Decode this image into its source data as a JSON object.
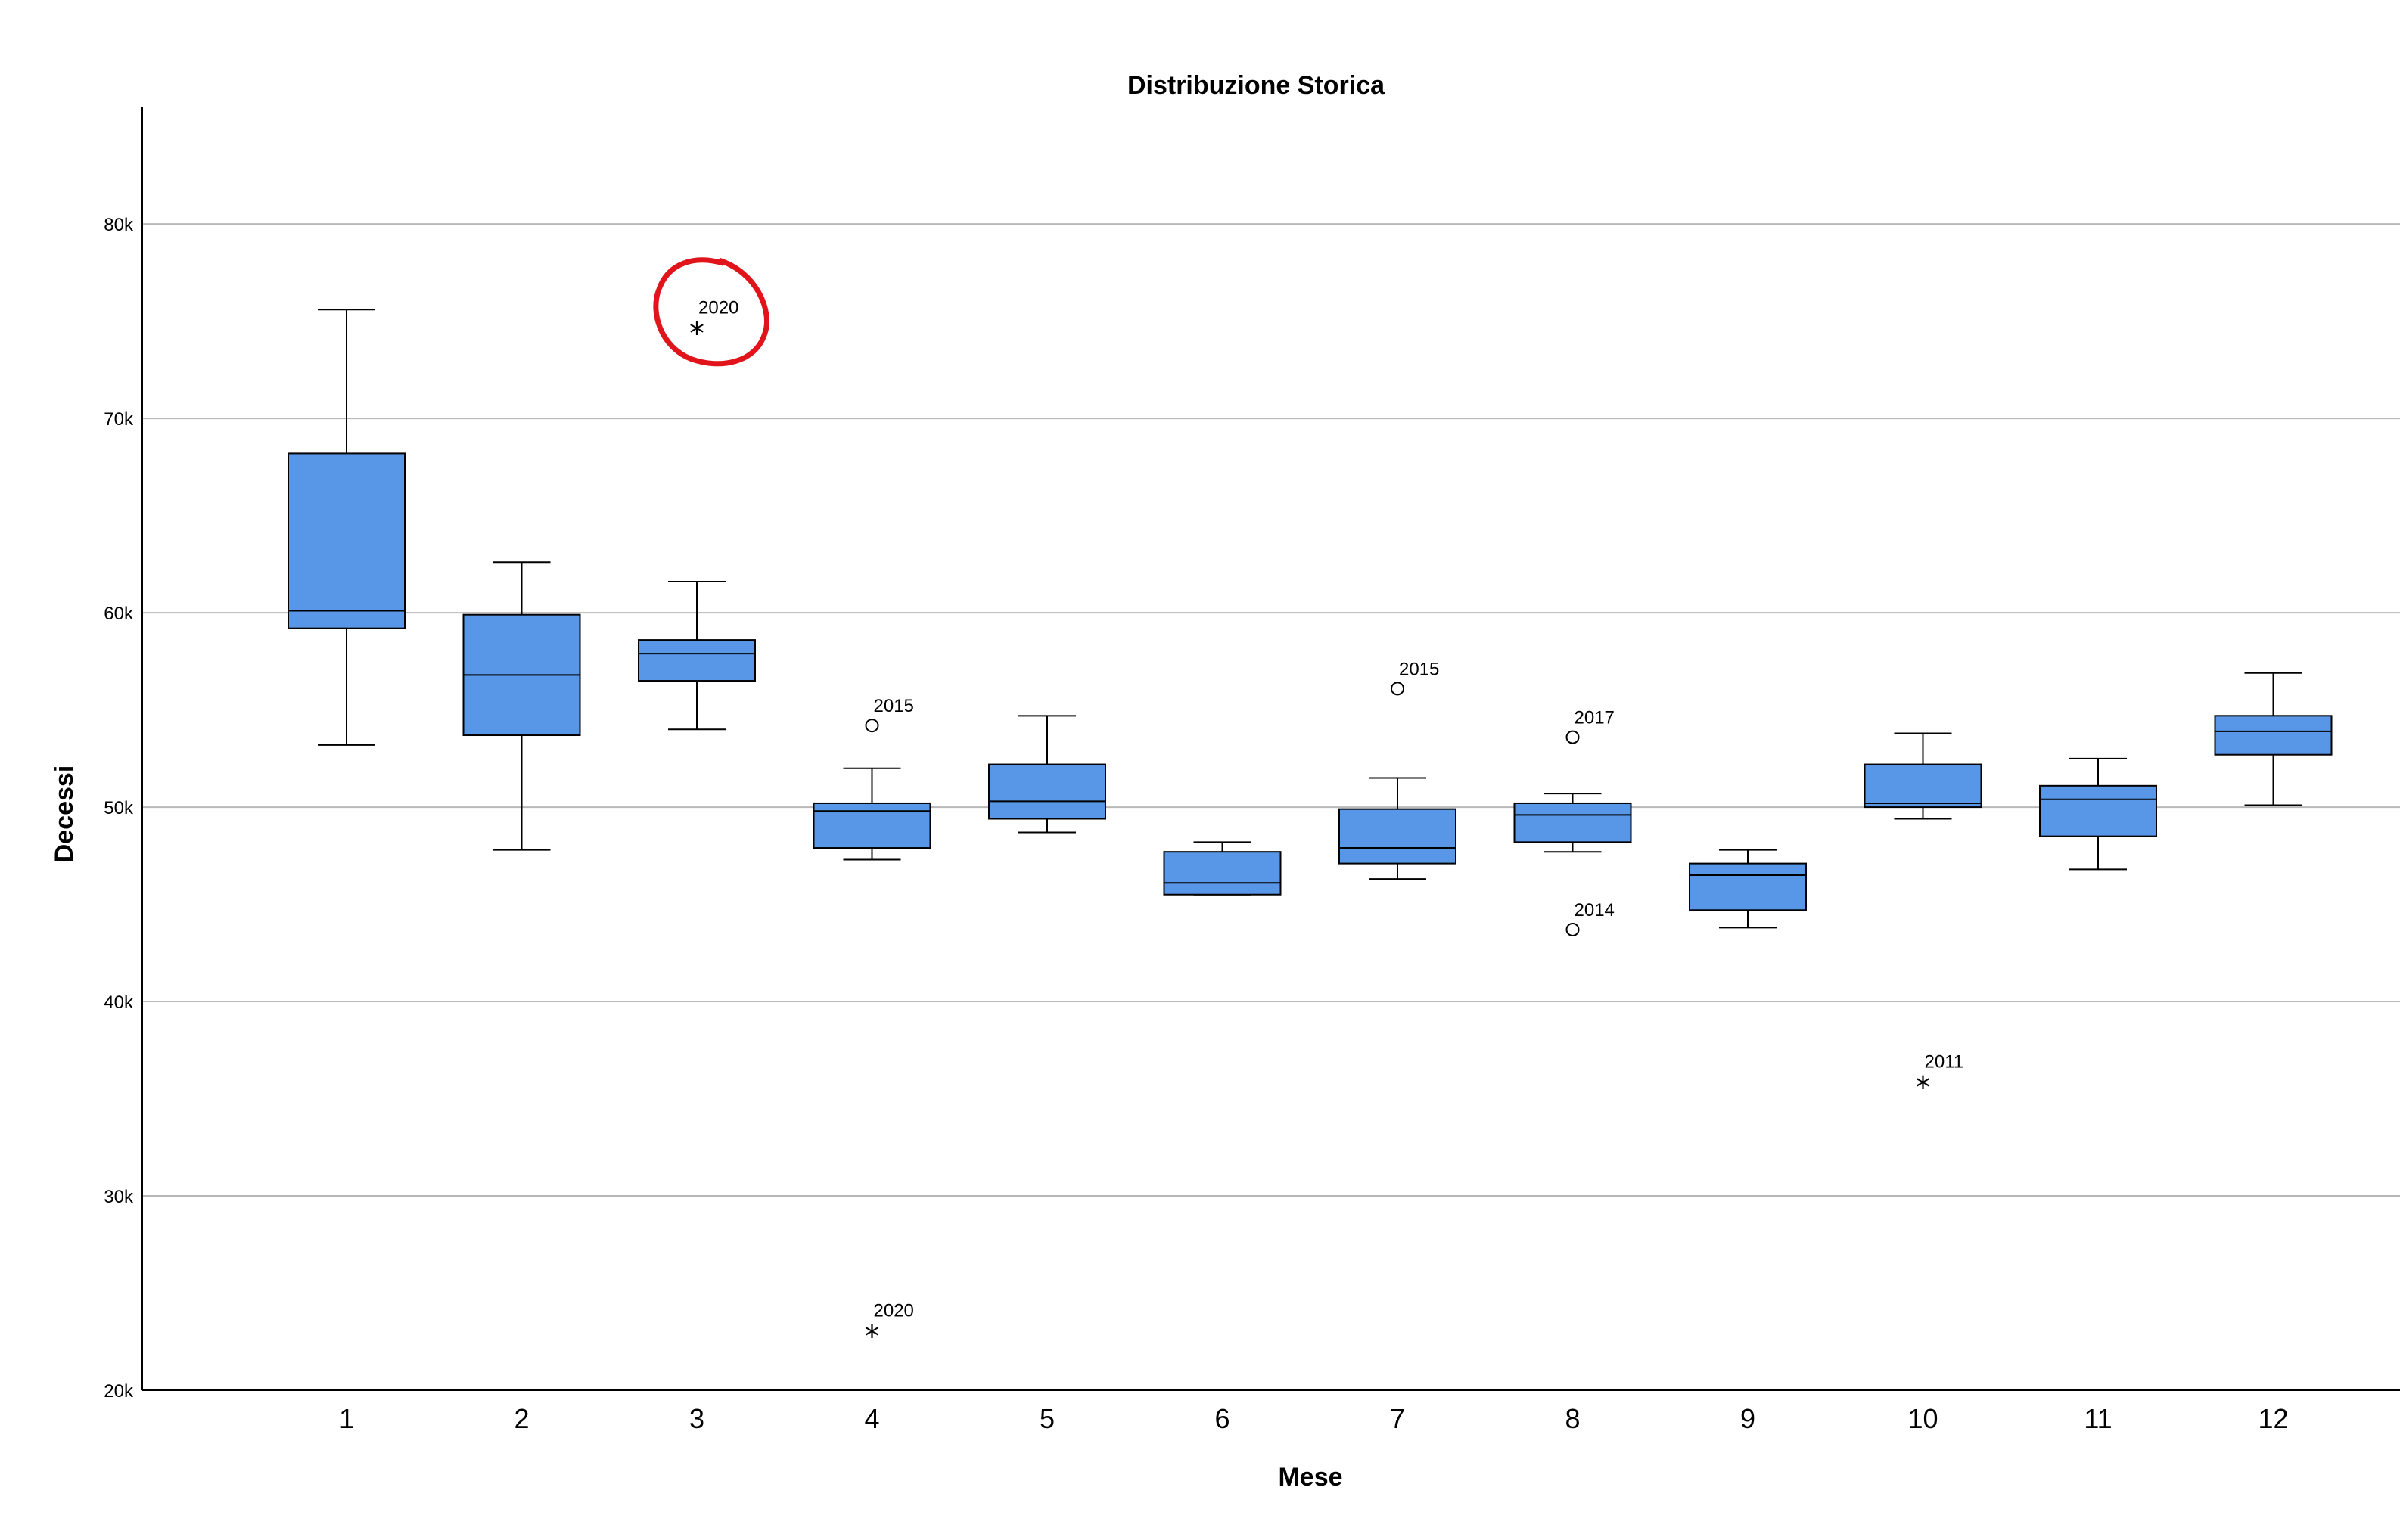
{
  "chart_data": {
    "type": "boxplot",
    "title": "Distribuzione Storica",
    "xlabel": "Mese",
    "ylabel": "Decessi",
    "ylim": [
      20000,
      86000
    ],
    "yticks": [
      {
        "value": 20000,
        "label": "20k"
      },
      {
        "value": 30000,
        "label": "30k"
      },
      {
        "value": 40000,
        "label": "40k"
      },
      {
        "value": 50000,
        "label": "50k"
      },
      {
        "value": 60000,
        "label": "60k"
      },
      {
        "value": 70000,
        "label": "70k"
      },
      {
        "value": 80000,
        "label": "80k"
      }
    ],
    "grid": true,
    "box_color": "#5897e8",
    "highlight_color": "#e0141a",
    "categories": [
      "1",
      "2",
      "3",
      "4",
      "5",
      "6",
      "7",
      "8",
      "9",
      "10",
      "11",
      "12"
    ],
    "boxes": [
      {
        "category": "1",
        "whisker_low": 53200,
        "q1": 59200,
        "median": 60100,
        "q3": 68200,
        "whisker_high": 75600
      },
      {
        "category": "2",
        "whisker_low": 47800,
        "q1": 53700,
        "median": 56800,
        "q3": 59900,
        "whisker_high": 62600
      },
      {
        "category": "3",
        "whisker_low": 54000,
        "q1": 56500,
        "median": 57900,
        "q3": 58600,
        "whisker_high": 61600
      },
      {
        "category": "4",
        "whisker_low": 47300,
        "q1": 47900,
        "median": 49800,
        "q3": 50200,
        "whisker_high": 52000
      },
      {
        "category": "5",
        "whisker_low": 48700,
        "q1": 49400,
        "median": 50300,
        "q3": 52200,
        "whisker_high": 54700
      },
      {
        "category": "6",
        "whisker_low": 45500,
        "q1": 45500,
        "median": 46100,
        "q3": 47700,
        "whisker_high": 48200
      },
      {
        "category": "7",
        "whisker_low": 46300,
        "q1": 47100,
        "median": 47900,
        "q3": 49900,
        "whisker_high": 51500
      },
      {
        "category": "8",
        "whisker_low": 47700,
        "q1": 48200,
        "median": 49600,
        "q3": 50200,
        "whisker_high": 50700
      },
      {
        "category": "9",
        "whisker_low": 43800,
        "q1": 44700,
        "median": 46500,
        "q3": 47100,
        "whisker_high": 47800
      },
      {
        "category": "10",
        "whisker_low": 49400,
        "q1": 50000,
        "median": 50200,
        "q3": 52200,
        "whisker_high": 53800
      },
      {
        "category": "11",
        "whisker_low": 46800,
        "q1": 48500,
        "median": 50400,
        "q3": 51100,
        "whisker_high": 52500
      },
      {
        "category": "12",
        "whisker_low": 50100,
        "q1": 52700,
        "median": 53900,
        "q3": 54700,
        "whisker_high": 56900
      }
    ],
    "outliers": [
      {
        "category": "3",
        "value": 74700,
        "label": "2020",
        "marker": "star",
        "highlighted": true
      },
      {
        "category": "4",
        "value": 54200,
        "label": "2015",
        "marker": "circle"
      },
      {
        "category": "4",
        "value": 23100,
        "label": "2020",
        "marker": "star"
      },
      {
        "category": "7",
        "value": 56100,
        "label": "2015",
        "marker": "circle"
      },
      {
        "category": "8",
        "value": 53600,
        "label": "2017",
        "marker": "circle"
      },
      {
        "category": "8",
        "value": 43700,
        "label": "2014",
        "marker": "circle"
      },
      {
        "category": "10",
        "value": 35900,
        "label": "2011",
        "marker": "star"
      }
    ]
  }
}
